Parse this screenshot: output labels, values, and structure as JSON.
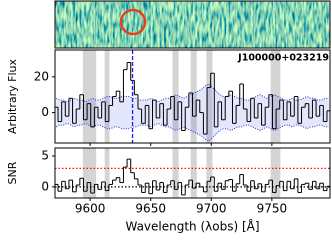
{
  "chart_data": [
    {
      "type": "step",
      "label": "J100000+023219",
      "label_color": "#1a1aff",
      "ylabel": "Arbitrary Flux",
      "x": [
        9572,
        9575,
        9578,
        9581,
        9584,
        9587,
        9590,
        9593,
        9596,
        9599,
        9602,
        9605,
        9608,
        9611,
        9614,
        9617,
        9620,
        9623,
        9626,
        9629,
        9632,
        9635,
        9638,
        9641,
        9644,
        9647,
        9650,
        9653,
        9656,
        9659,
        9662,
        9665,
        9668,
        9671,
        9674,
        9677,
        9680,
        9683,
        9686,
        9689,
        9692,
        9695,
        9698,
        9701,
        9704,
        9707,
        9710,
        9713,
        9716,
        9719,
        9722,
        9725,
        9728,
        9731,
        9734,
        9737,
        9740,
        9743,
        9746,
        9749,
        9752,
        9755,
        9758,
        9761,
        9764,
        9767,
        9770,
        9773,
        9776,
        9779,
        9782,
        9785,
        9788,
        9791,
        9794,
        9797
      ],
      "xlim": [
        9571,
        9798
      ],
      "ylim": [
        -17,
        35
      ],
      "yticks": [
        0,
        20
      ],
      "series": [
        {
          "color": "#000000",
          "values": [
            3,
            -5,
            6,
            -2,
            8,
            -6,
            2,
            10,
            -4,
            5,
            -8,
            3,
            -3,
            6,
            -5,
            4,
            9,
            12,
            6,
            24,
            28,
            18,
            10,
            2,
            -6,
            4,
            -9,
            7,
            -3,
            5,
            -7,
            2,
            9,
            -4,
            6,
            -10,
            3,
            11,
            -2,
            7,
            0,
            -12,
            14,
            22,
            -8,
            6,
            -4,
            9,
            12,
            -6,
            4,
            16,
            2,
            -5,
            8,
            -3,
            5,
            -7,
            3,
            10,
            -9,
            2,
            7,
            -4,
            6,
            -2,
            9,
            -6,
            3,
            5,
            -3,
            7,
            -2,
            4,
            -5,
            1
          ]
        }
      ],
      "error": {
        "color": "#2233dd",
        "values": [
          8,
          7,
          7,
          6,
          7,
          8,
          7,
          7,
          6,
          7,
          8,
          7,
          7,
          8,
          9,
          9,
          8,
          8,
          9,
          9,
          9,
          8,
          8,
          7,
          7,
          7,
          8,
          7,
          6,
          7,
          8,
          8,
          9,
          10,
          9,
          8,
          9,
          10,
          11,
          12,
          13,
          15,
          16,
          14,
          12,
          10,
          9,
          9,
          10,
          9,
          8,
          8,
          7,
          7,
          8,
          9,
          10,
          9,
          8,
          9,
          10,
          9,
          8,
          7,
          7,
          8,
          7,
          7,
          8,
          9,
          8,
          8,
          7,
          7,
          8,
          8
        ]
      },
      "bands": [
        [
          9594,
          9605
        ],
        [
          9612,
          9616
        ],
        [
          9668,
          9673
        ],
        [
          9683,
          9688
        ],
        [
          9696,
          9701
        ],
        [
          9749,
          9757
        ]
      ],
      "vline": {
        "value": 9635,
        "color": "#1a1aff"
      }
    },
    {
      "type": "step",
      "ylabel": "SNR",
      "xlabel": "Wavelength (λobs) [Å]",
      "x": [
        9572,
        9575,
        9578,
        9581,
        9584,
        9587,
        9590,
        9593,
        9596,
        9599,
        9602,
        9605,
        9608,
        9611,
        9614,
        9617,
        9620,
        9623,
        9626,
        9629,
        9632,
        9635,
        9638,
        9641,
        9644,
        9647,
        9650,
        9653,
        9656,
        9659,
        9662,
        9665,
        9668,
        9671,
        9674,
        9677,
        9680,
        9683,
        9686,
        9689,
        9692,
        9695,
        9698,
        9701,
        9704,
        9707,
        9710,
        9713,
        9716,
        9719,
        9722,
        9725,
        9728,
        9731,
        9734,
        9737,
        9740,
        9743,
        9746,
        9749,
        9752,
        9755,
        9758,
        9761,
        9764,
        9767,
        9770,
        9773,
        9776,
        9779,
        9782,
        9785,
        9788,
        9791,
        9794,
        9797
      ],
      "xlim": [
        9571,
        9798
      ],
      "ylim": [
        -1.8,
        6.3
      ],
      "yticks": [
        0,
        5
      ],
      "xticks": [
        9600,
        9650,
        9700,
        9750
      ],
      "series": [
        {
          "color": "#000000",
          "values": [
            0.4,
            -0.7,
            0.9,
            -0.3,
            1.1,
            -0.8,
            0.3,
            1.4,
            -0.7,
            0.7,
            -1.0,
            0.4,
            -0.4,
            0.8,
            -0.6,
            0.4,
            1.1,
            1.5,
            0.7,
            3.2,
            4.5,
            2.3,
            1.3,
            0.3,
            -0.9,
            0.6,
            -1.1,
            1.0,
            -0.5,
            0.7,
            -0.9,
            0.3,
            1.0,
            -0.4,
            0.7,
            -1.3,
            0.3,
            1.1,
            -0.2,
            0.6,
            0.0,
            -0.8,
            0.9,
            1.6,
            -0.7,
            0.6,
            -0.4,
            1.0,
            1.2,
            -0.7,
            0.5,
            2.0,
            0.3,
            -0.7,
            1.0,
            -0.3,
            0.5,
            -0.8,
            0.4,
            1.1,
            -0.9,
            0.2,
            0.9,
            -0.6,
            0.9,
            -0.3,
            1.3,
            -0.9,
            0.4,
            0.6,
            -0.4,
            0.9,
            -0.3,
            0.6,
            -0.6,
            0.1
          ]
        }
      ],
      "bands": [
        [
          9594,
          9605
        ],
        [
          9612,
          9616
        ],
        [
          9668,
          9673
        ],
        [
          9683,
          9688
        ],
        [
          9696,
          9701
        ],
        [
          9749,
          9757
        ]
      ],
      "hlines": [
        {
          "value": 3,
          "color": "#ee1111"
        },
        {
          "value": 0,
          "color": "#000000"
        }
      ]
    }
  ]
}
